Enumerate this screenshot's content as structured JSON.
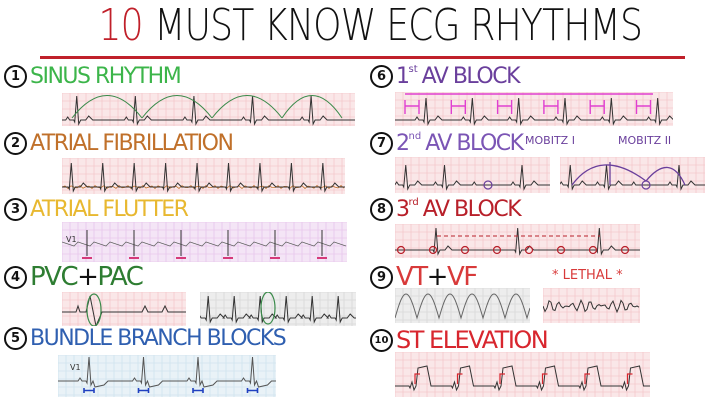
{
  "title": {
    "number": "10",
    "text": "MUST KNOW ECG RHYTHMS"
  },
  "colors": {
    "title_red": "#c0202a",
    "grid_pink": "#f4c9cc",
    "grid_blue": "#cfe3ee",
    "grid_purple": "#e7c6ec",
    "grid_gray": "#d8d8d8"
  },
  "rhythms": [
    {
      "number": "1",
      "name": "SINUS RHYTHM",
      "color": "#3cb54a"
    },
    {
      "number": "2",
      "name": "ATRIAL FIBRILLATION",
      "color": "#c0702a"
    },
    {
      "number": "3",
      "name": "ATRIAL FLUTTER",
      "color": "#e8b830"
    },
    {
      "number": "4",
      "name_a": "PVC",
      "plus": "+",
      "name_b": "PAC",
      "color": "#2e7d32"
    },
    {
      "number": "5",
      "name": "BUNDLE BRANCH BLOCKS",
      "color": "#2f5fb0",
      "lead": "V1"
    },
    {
      "number": "6",
      "prefix": "1",
      "sup": "st",
      "name": "AV BLOCK",
      "color": "#6a3f9c"
    },
    {
      "number": "7",
      "prefix": "2",
      "sup": "nd",
      "name": "AV BLOCK",
      "color": "#7b55b5",
      "mobitz1": "MOBITZ I",
      "mobitz2": "MOBITZ II"
    },
    {
      "number": "8",
      "prefix": "3",
      "sup": "rd",
      "name": "AV BLOCK",
      "color": "#b8202a"
    },
    {
      "number": "9",
      "name_a": "VT",
      "plus": "+",
      "name_b": "VF",
      "color": "#d83a3a",
      "note": "* LETHAL *"
    },
    {
      "number": "10",
      "name": "ST ELEVATION",
      "color": "#d8262e"
    }
  ],
  "flutter_lead": "V1"
}
